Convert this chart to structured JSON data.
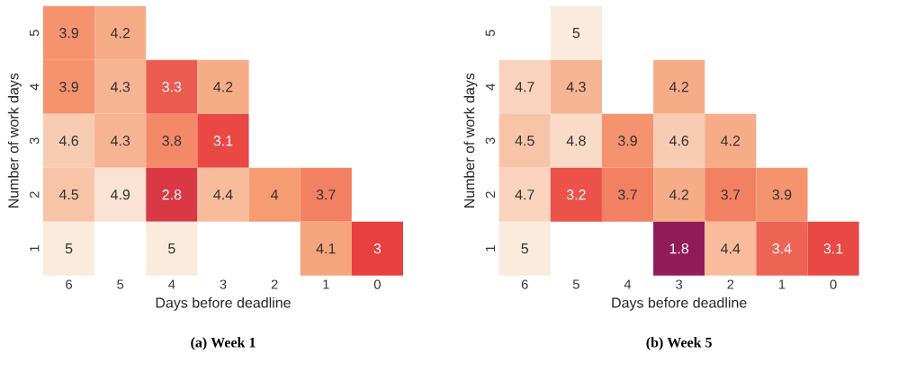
{
  "chart_data": [
    {
      "type": "heatmap",
      "title": "(a) Week 1",
      "xlabel": "Days before deadline",
      "ylabel": "Number of work days",
      "categories": [
        "6",
        "5",
        "4",
        "3",
        "2",
        "1",
        "0"
      ],
      "y_categories": [
        "5",
        "4",
        "3",
        "2",
        "1"
      ],
      "data_labels": true,
      "cells": [
        [
          3.9,
          4.2,
          null,
          null,
          null,
          null,
          null
        ],
        [
          3.9,
          4.3,
          3.3,
          4.2,
          null,
          null,
          null
        ],
        [
          4.6,
          4.3,
          3.8,
          3.1,
          null,
          null,
          null
        ],
        [
          4.5,
          4.9,
          2.8,
          4.4,
          4,
          3.7,
          null
        ],
        [
          5,
          null,
          5,
          null,
          null,
          4.1,
          3
        ]
      ]
    },
    {
      "type": "heatmap",
      "title": "(b) Week 5",
      "xlabel": "Days before deadline",
      "ylabel": "Number of work days",
      "categories": [
        "6",
        "5",
        "4",
        "3",
        "2",
        "1",
        "0"
      ],
      "y_categories": [
        "5",
        "4",
        "3",
        "2",
        "1"
      ],
      "data_labels": true,
      "cells": [
        [
          null,
          5,
          null,
          null,
          null,
          null,
          null
        ],
        [
          4.7,
          4.3,
          null,
          4.2,
          null,
          null,
          null
        ],
        [
          4.5,
          4.8,
          3.9,
          4.6,
          4.2,
          null,
          null
        ],
        [
          4.7,
          3.2,
          3.7,
          4.2,
          3.7,
          3.9,
          null
        ],
        [
          5,
          null,
          null,
          1.8,
          4.4,
          3.4,
          3.1
        ]
      ]
    }
  ]
}
